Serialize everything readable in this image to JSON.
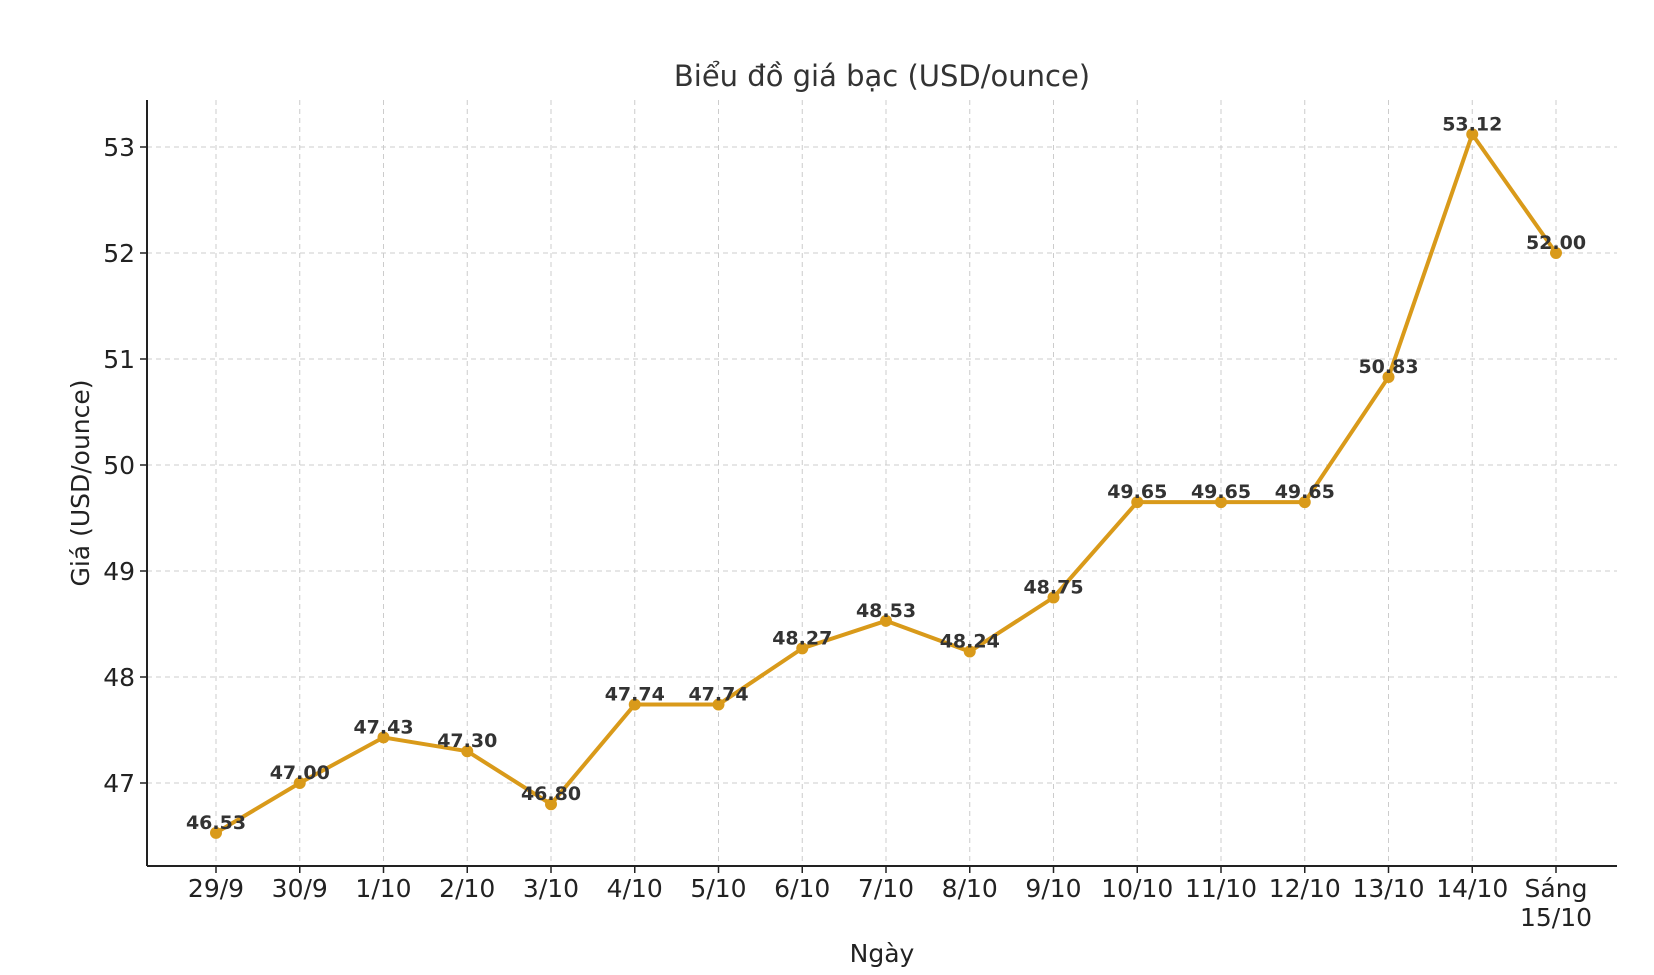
{
  "chart_data": {
    "type": "line",
    "title": "Biểu đồ giá bạc (USD/ounce)",
    "xlabel": "Ngày",
    "ylabel": "Giá (USD/ounce)",
    "categories": [
      "29/9",
      "30/9",
      "1/10",
      "2/10",
      "3/10",
      "4/10",
      "5/10",
      "6/10",
      "7/10",
      "8/10",
      "9/10",
      "10/10",
      "11/10",
      "12/10",
      "13/10",
      "14/10",
      "Sáng 15/10"
    ],
    "series": [
      {
        "values": [
          46.53,
          47.0,
          47.43,
          47.3,
          46.8,
          47.74,
          47.74,
          48.27,
          48.53,
          48.24,
          48.75,
          49.65,
          49.65,
          49.65,
          50.83,
          53.12,
          52.0
        ],
        "data_labels": [
          "46.53",
          "47.00",
          "47.43",
          "47.30",
          "46.80",
          "47.74",
          "47.74",
          "48.27",
          "48.53",
          "48.24",
          "48.75",
          "49.65",
          "49.65",
          "49.65",
          "50.83",
          "53.12",
          "52.00"
        ],
        "color": "#D99A1A"
      }
    ],
    "yticks": [
      "47",
      "48",
      "49",
      "50",
      "51",
      "52",
      "53"
    ],
    "ylim": [
      46.2,
      53.45
    ],
    "grid": true,
    "legend": "none",
    "marker": "circle"
  }
}
